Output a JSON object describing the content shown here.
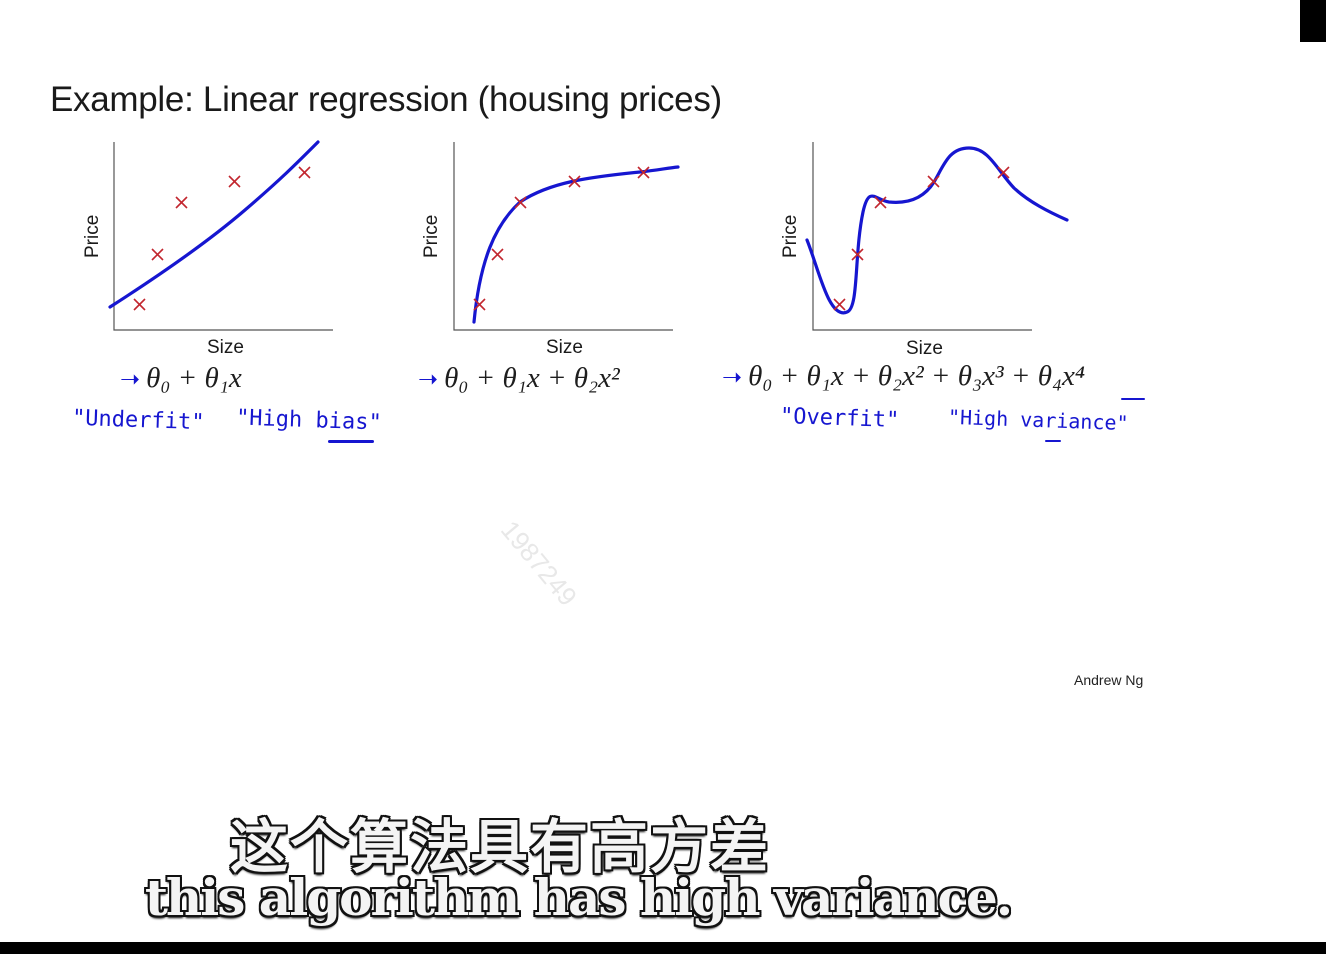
{
  "slide": {
    "title": "Example: Linear regression (housing prices)",
    "author": "Andrew Ng",
    "watermark": "1987249"
  },
  "plots": [
    {
      "ylabel": "Price",
      "xlabel": "Size",
      "formula": "θ₀ + θ₁x",
      "notes": [
        "\"Underfit\"",
        "\"High bias\""
      ]
    },
    {
      "ylabel": "Price",
      "xlabel": "Size",
      "formula": "θ₀ + θ₁x + θ₂x²",
      "notes": []
    },
    {
      "ylabel": "Price",
      "xlabel": "Size",
      "formula": "θ₀ + θ₁x + θ₂x² + θ₃x³ + θ₄x⁴",
      "notes": [
        "\"Overfit\"",
        "\"High variance\""
      ]
    }
  ],
  "subtitles": {
    "zh": "这个算法具有高方差",
    "en": "this algorithm has high variance."
  },
  "colors": {
    "curve": "#1616d0",
    "points": "#c2262e",
    "ink": "#1616d0"
  },
  "icons": {
    "arrow": "right-arrow-icon"
  }
}
